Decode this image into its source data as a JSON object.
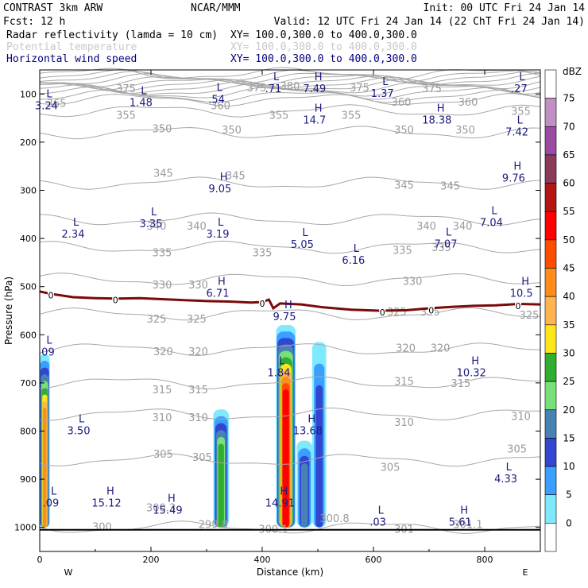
{
  "header": {
    "title_left": "CONTRAST  3km ARW",
    "title_center": "NCAR/MMM",
    "init": "Init: 00 UTC Fri 24 Jan 14",
    "fcst": "Fcst:   12 h",
    "valid": "Valid: 12 UTC Fri 24 Jan 14 (22 ChT Fri 24 Jan 14)",
    "fields": [
      {
        "name": "Radar reflectivity (lamda = 10 cm)",
        "xy": "XY= 100.0,300.0 to 400.0,300.0",
        "color": "#000000"
      },
      {
        "name": "Potential temperature",
        "xy": "XY= 100.0,300.0 to 400.0,300.0",
        "color": "#c8c8c8"
      },
      {
        "name": "Horizontal wind speed",
        "xy": "XY= 100.0,300.0 to 400.0,300.0",
        "color": "#000080"
      }
    ]
  },
  "chart_data": {
    "type": "cross-section",
    "xlabel": "Distance (km)",
    "ylabel": "Pressure (hPa)",
    "xlim": [
      0,
      900
    ],
    "ylim": [
      1050,
      50
    ],
    "x_ticks": [
      0,
      200,
      400,
      600,
      800
    ],
    "y_ticks": [
      100,
      200,
      300,
      400,
      500,
      600,
      700,
      800,
      900,
      1000
    ],
    "x_end_labels": {
      "left": "W",
      "right": "E"
    },
    "colorbar": {
      "unit": "dBZ",
      "ticks": [
        "75",
        "70",
        "65",
        "60",
        "55",
        "50",
        "45",
        "40",
        "35",
        "30",
        "25",
        "20",
        "15",
        "10",
        "5",
        "0"
      ],
      "colors": [
        "#ffffff",
        "#c28fc4",
        "#9b4aa4",
        "#8c3a5a",
        "#b41414",
        "#ff0000",
        "#ff4d00",
        "#ff8c1a",
        "#ffb450",
        "#ffe61a",
        "#2fae2f",
        "#78e078",
        "#4682b4",
        "#3246d2",
        "#3aa0ff",
        "#7fe9ff",
        "#ffffff"
      ]
    },
    "theta_contours": [
      {
        "value": 300,
        "p": 1000
      },
      {
        "value": 305,
        "p": 860
      },
      {
        "value": 310,
        "p": 765
      },
      {
        "value": 315,
        "p": 700
      },
      {
        "value": 320,
        "p": 630
      },
      {
        "value": 325,
        "p": 557
      },
      {
        "value": 330,
        "p": 485
      },
      {
        "value": 335,
        "p": 418
      },
      {
        "value": 340,
        "p": 360
      },
      {
        "value": 345,
        "p": 285
      },
      {
        "value": 350,
        "p": 180
      },
      {
        "value": 355,
        "p": 135
      },
      {
        "value": 360,
        "p": 112
      },
      {
        "value": 365,
        "p": 105
      },
      {
        "value": 370,
        "p": 98
      },
      {
        "value": 375,
        "p": 92
      },
      {
        "value": 380,
        "p": 87
      },
      {
        "value": 385,
        "p": 82
      },
      {
        "value": 390,
        "p": 78
      },
      {
        "value": 395,
        "p": 74
      },
      {
        "value": 400,
        "p": 70
      },
      {
        "value": 405,
        "p": 66
      },
      {
        "value": 410,
        "p": 62
      },
      {
        "value": 415,
        "p": 58
      }
    ],
    "theta_labels": [
      {
        "text": "365",
        "x": 30,
        "p": 120
      },
      {
        "text": "375",
        "x": 155,
        "p": 90
      },
      {
        "text": "360",
        "x": 325,
        "p": 125
      },
      {
        "text": "375",
        "x": 390,
        "p": 88
      },
      {
        "text": "380",
        "x": 450,
        "p": 85
      },
      {
        "text": "375",
        "x": 575,
        "p": 88
      },
      {
        "text": "375",
        "x": 705,
        "p": 90
      },
      {
        "text": "360",
        "x": 770,
        "p": 118
      },
      {
        "text": "355",
        "x": 155,
        "p": 145
      },
      {
        "text": "355",
        "x": 430,
        "p": 145
      },
      {
        "text": "355",
        "x": 560,
        "p": 145
      },
      {
        "text": "355",
        "x": 865,
        "p": 137
      },
      {
        "text": "360",
        "x": 650,
        "p": 118
      },
      {
        "text": "350",
        "x": 220,
        "p": 173
      },
      {
        "text": "350",
        "x": 345,
        "p": 175
      },
      {
        "text": "350",
        "x": 655,
        "p": 175
      },
      {
        "text": "350",
        "x": 765,
        "p": 175
      },
      {
        "text": "345",
        "x": 222,
        "p": 265
      },
      {
        "text": "345",
        "x": 352,
        "p": 270
      },
      {
        "text": "345",
        "x": 655,
        "p": 290
      },
      {
        "text": "345",
        "x": 738,
        "p": 292
      },
      {
        "text": "340",
        "x": 210,
        "p": 375
      },
      {
        "text": "340",
        "x": 282,
        "p": 375
      },
      {
        "text": "340",
        "x": 695,
        "p": 375
      },
      {
        "text": "340",
        "x": 760,
        "p": 375
      },
      {
        "text": "335",
        "x": 220,
        "p": 430
      },
      {
        "text": "335",
        "x": 400,
        "p": 430
      },
      {
        "text": "335",
        "x": 652,
        "p": 425
      },
      {
        "text": "335",
        "x": 722,
        "p": 420
      },
      {
        "text": "330",
        "x": 220,
        "p": 497
      },
      {
        "text": "330",
        "x": 285,
        "p": 497
      },
      {
        "text": "330",
        "x": 670,
        "p": 490
      },
      {
        "text": "325",
        "x": 210,
        "p": 568
      },
      {
        "text": "325",
        "x": 282,
        "p": 568
      },
      {
        "text": "325",
        "x": 642,
        "p": 553
      },
      {
        "text": "325",
        "x": 702,
        "p": 553
      },
      {
        "text": "325",
        "x": 880,
        "p": 560
      },
      {
        "text": "320",
        "x": 222,
        "p": 636
      },
      {
        "text": "320",
        "x": 285,
        "p": 636
      },
      {
        "text": "320",
        "x": 658,
        "p": 628
      },
      {
        "text": "320",
        "x": 720,
        "p": 628
      },
      {
        "text": "315",
        "x": 220,
        "p": 715
      },
      {
        "text": "315",
        "x": 285,
        "p": 715
      },
      {
        "text": "315",
        "x": 655,
        "p": 698
      },
      {
        "text": "315",
        "x": 757,
        "p": 702
      },
      {
        "text": "310",
        "x": 220,
        "p": 773
      },
      {
        "text": "310",
        "x": 285,
        "p": 773
      },
      {
        "text": "310",
        "x": 655,
        "p": 783
      },
      {
        "text": "310",
        "x": 865,
        "p": 770
      },
      {
        "text": "305",
        "x": 222,
        "p": 849
      },
      {
        "text": "305",
        "x": 292,
        "p": 855
      },
      {
        "text": "305",
        "x": 630,
        "p": 876
      },
      {
        "text": "305",
        "x": 858,
        "p": 838
      },
      {
        "text": "300",
        "x": 112,
        "p": 1000
      },
      {
        "text": "300.3",
        "x": 218,
        "p": 960
      },
      {
        "text": "299.8",
        "x": 312,
        "p": 995
      },
      {
        "text": "300.1",
        "x": 420,
        "p": 1005
      },
      {
        "text": "300.8",
        "x": 530,
        "p": 982
      },
      {
        "text": "301",
        "x": 655,
        "p": 1005
      },
      {
        "text": "301.1",
        "x": 770,
        "p": 995
      }
    ],
    "zero_c_isotherm": {
      "label": "0",
      "points": [
        [
          0,
          510
        ],
        [
          20,
          515
        ],
        [
          60,
          522
        ],
        [
          100,
          524
        ],
        [
          140,
          525
        ],
        [
          180,
          524
        ],
        [
          220,
          526
        ],
        [
          260,
          528
        ],
        [
          300,
          530
        ],
        [
          340,
          531
        ],
        [
          380,
          533
        ],
        [
          400,
          532
        ],
        [
          412,
          527
        ],
        [
          420,
          545
        ],
        [
          432,
          535
        ],
        [
          470,
          537
        ],
        [
          510,
          543
        ],
        [
          560,
          548
        ],
        [
          610,
          550
        ],
        [
          660,
          549
        ],
        [
          700,
          545
        ],
        [
          740,
          542
        ],
        [
          780,
          540
        ],
        [
          820,
          539
        ],
        [
          860,
          536
        ],
        [
          900,
          537
        ]
      ],
      "label_positions": [
        [
          20,
          518
        ],
        [
          136,
          528
        ],
        [
          400,
          535
        ],
        [
          616,
          553
        ],
        [
          704,
          549
        ],
        [
          860,
          540
        ]
      ]
    },
    "wind_extrema": [
      {
        "type": "L",
        "value": "3.24",
        "x": 12,
        "p": 110
      },
      {
        "type": "L",
        "value": "1.48",
        "x": 182,
        "p": 104
      },
      {
        "type": "L",
        "value": ".54",
        "x": 318,
        "p": 97
      },
      {
        "type": "L",
        "value": ".71",
        "x": 420,
        "p": 75
      },
      {
        "type": "H",
        "value": "7.49",
        "x": 494,
        "p": 75
      },
      {
        "type": "L",
        "value": "1.37",
        "x": 616,
        "p": 85
      },
      {
        "type": "L",
        "value": ".27",
        "x": 862,
        "p": 75
      },
      {
        "type": "H",
        "value": "14.7",
        "x": 494,
        "p": 140
      },
      {
        "type": "H",
        "value": "18.38",
        "x": 714,
        "p": 140
      },
      {
        "type": "L",
        "value": "7.42",
        "x": 858,
        "p": 165
      },
      {
        "type": "H",
        "value": "9.05",
        "x": 324,
        "p": 283
      },
      {
        "type": "H",
        "value": "9.76",
        "x": 852,
        "p": 260
      },
      {
        "type": "L",
        "value": "3.35",
        "x": 200,
        "p": 355
      },
      {
        "type": "L",
        "value": "2.34",
        "x": 60,
        "p": 377
      },
      {
        "type": "L",
        "value": "3.19",
        "x": 320,
        "p": 377
      },
      {
        "type": "L",
        "value": "7.04",
        "x": 812,
        "p": 353
      },
      {
        "type": "L",
        "value": "7.07",
        "x": 730,
        "p": 397
      },
      {
        "type": "L",
        "value": "5.05",
        "x": 472,
        "p": 398
      },
      {
        "type": "L",
        "value": "6.16",
        "x": 564,
        "p": 431
      },
      {
        "type": "H",
        "value": "6.71",
        "x": 320,
        "p": 500
      },
      {
        "type": "H",
        "value": "10.5",
        "x": 866,
        "p": 500
      },
      {
        "type": "H",
        "value": "9.75",
        "x": 440,
        "p": 548
      },
      {
        "type": "L",
        "value": ".09",
        "x": 12,
        "p": 622
      },
      {
        "type": "L",
        "value": "1.84",
        "x": 430,
        "p": 665
      },
      {
        "type": "H",
        "value": "10.32",
        "x": 776,
        "p": 665
      },
      {
        "type": "L",
        "value": "3.50",
        "x": 70,
        "p": 785
      },
      {
        "type": "H",
        "value": "13.68",
        "x": 482,
        "p": 785
      },
      {
        "type": "L",
        "value": "4.33",
        "x": 838,
        "p": 885
      },
      {
        "type": "L",
        "value": ".09",
        "x": 20,
        "p": 935
      },
      {
        "type": "H",
        "value": "15.12",
        "x": 120,
        "p": 935
      },
      {
        "type": "H",
        "value": "15.49",
        "x": 230,
        "p": 950
      },
      {
        "type": "H",
        "value": "14.91",
        "x": 432,
        "p": 935
      },
      {
        "type": "L",
        "value": ".03",
        "x": 608,
        "p": 975
      },
      {
        "type": "H",
        "value": "5.61",
        "x": 756,
        "p": 975
      }
    ],
    "reflectivity_cells": [
      {
        "x": [
          0,
          18
        ],
        "p": [
          1000,
          640
        ],
        "max_dbz": 45
      },
      {
        "x": [
          312,
          340
        ],
        "p": [
          1000,
          755
        ],
        "max_dbz": 30
      },
      {
        "x": [
          425,
          460
        ],
        "p": [
          1000,
          580
        ],
        "max_dbz": 55
      },
      {
        "x": [
          462,
          490
        ],
        "p": [
          1000,
          820
        ],
        "max_dbz": 20
      },
      {
        "x": [
          490,
          515
        ],
        "p": [
          1000,
          615
        ],
        "max_dbz": 15
      }
    ]
  }
}
